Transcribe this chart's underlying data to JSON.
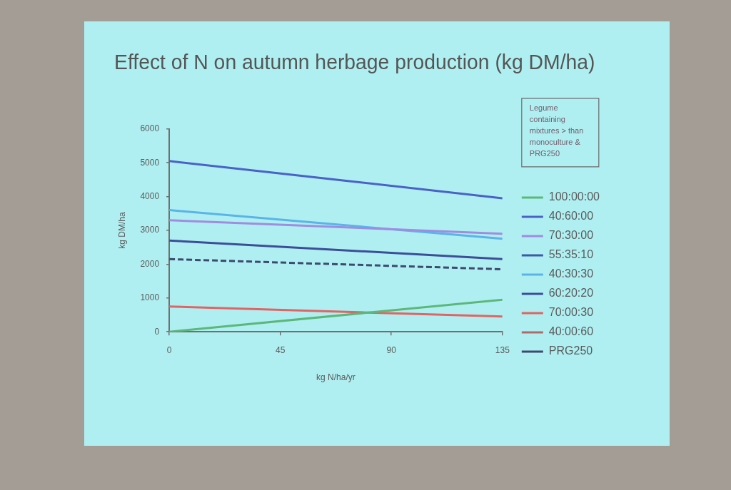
{
  "chart_data": {
    "type": "line",
    "title": "Effect of N on autumn herbage production (kg DM/ha)",
    "xlabel": "kg N/ha/yr",
    "ylabel": "kg DM/ha",
    "x": [
      0,
      135
    ],
    "xlim": [
      0,
      135
    ],
    "xticks": [
      0,
      45,
      90,
      135
    ],
    "ylim": [
      0,
      6000
    ],
    "yticks": [
      0,
      1000,
      2000,
      3000,
      4000,
      5000,
      6000
    ],
    "series": [
      {
        "name": "100:00:00",
        "color": "#5cb87a",
        "values": [
          0,
          950
        ]
      },
      {
        "name": "40:60:00",
        "color": "#4a62c8",
        "values": [
          5050,
          3950
        ]
      },
      {
        "name": "70:30:00",
        "color": "#a08ce0",
        "values": [
          3300,
          2900
        ]
      },
      {
        "name": "55:35:10",
        "color": "#3c5aa8",
        "values": [
          null,
          null
        ]
      },
      {
        "name": "40:30:30",
        "color": "#5ab4e8",
        "values": [
          3600,
          2750
        ]
      },
      {
        "name": "60:20:20",
        "color": "#3c4e98",
        "values": [
          2700,
          2150
        ]
      },
      {
        "name": "70:00:30",
        "color": "#e06464",
        "values": [
          750,
          450
        ]
      },
      {
        "name": "40:00:60",
        "color": "#b06a6a",
        "values": [
          null,
          null
        ]
      },
      {
        "name": "PRG250",
        "color": "#3c4a6e",
        "values": [
          2150,
          1850
        ],
        "line_style": "dashed"
      }
    ],
    "annotations": [
      "Legume containing mixtures > than monoculture & PRG250"
    ],
    "grid": false,
    "legend": "right",
    "marker": "none",
    "line_style": "solid"
  }
}
